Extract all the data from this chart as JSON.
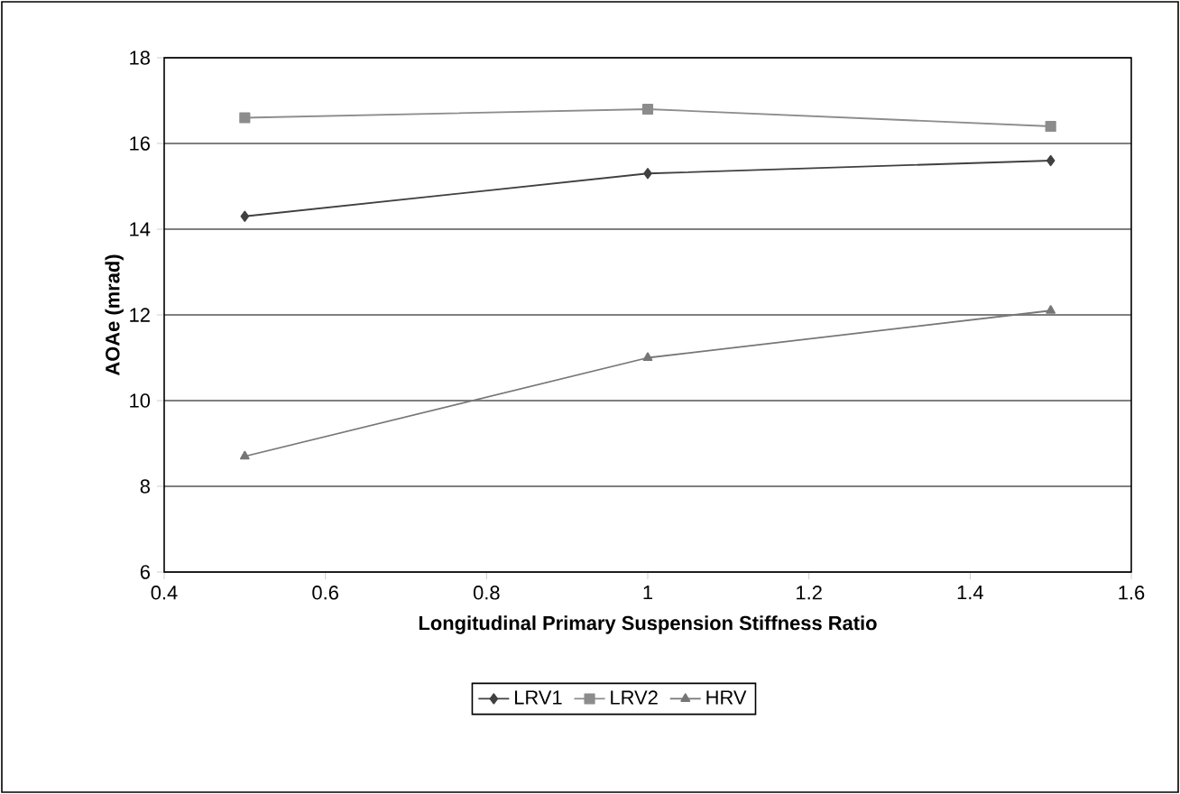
{
  "chart_data": {
    "type": "line",
    "xlabel": "Longitudinal Primary Suspension Stiffness Ratio",
    "ylabel": "AOAe (mrad)",
    "x": [
      0.5,
      1,
      1.5
    ],
    "series": [
      {
        "name": "LRV1",
        "color": "#404040",
        "marker": "diamond",
        "values": [
          14.3,
          15.3,
          15.6
        ]
      },
      {
        "name": "LRV2",
        "color": "#8c8c8c",
        "marker": "square",
        "values": [
          16.6,
          16.8,
          16.4
        ]
      },
      {
        "name": "HRV",
        "color": "#767676",
        "marker": "triangle",
        "values": [
          8.7,
          11.0,
          12.1
        ]
      }
    ],
    "xlim": [
      0.4,
      1.6
    ],
    "xticks": [
      0.4,
      0.6,
      0.8,
      1,
      1.2,
      1.4,
      1.6
    ],
    "ylim": [
      6,
      18
    ],
    "yticks": [
      6,
      8,
      10,
      12,
      14,
      16,
      18
    ],
    "grid": "y",
    "legend": "bottom",
    "line_style": "solid"
  }
}
